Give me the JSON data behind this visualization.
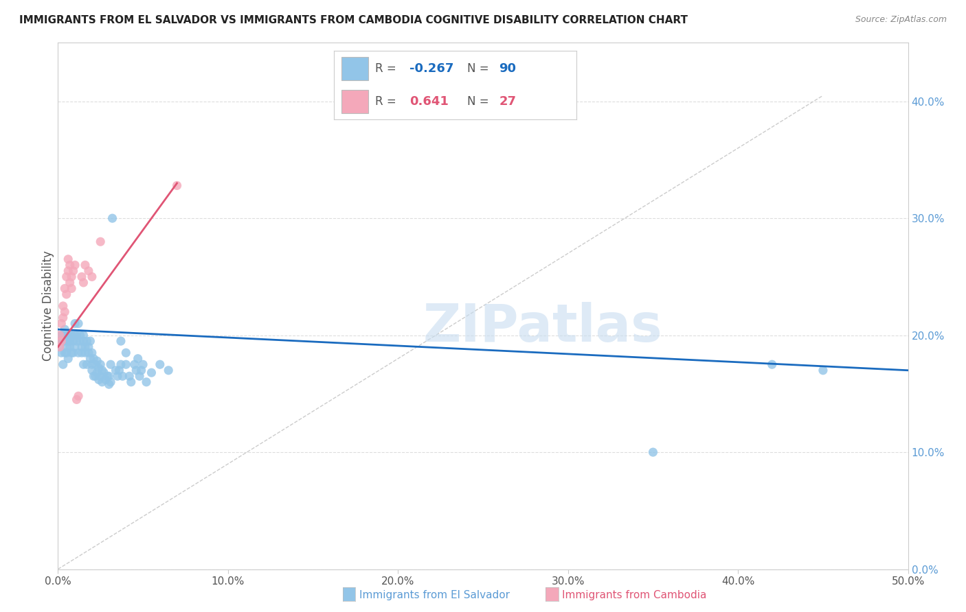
{
  "title": "IMMIGRANTS FROM EL SALVADOR VS IMMIGRANTS FROM CAMBODIA COGNITIVE DISABILITY CORRELATION CHART",
  "source": "Source: ZipAtlas.com",
  "ylabel": "Cognitive Disability",
  "R_salvador": -0.267,
  "N_salvador": 90,
  "R_cambodia": 0.641,
  "N_cambodia": 27,
  "color_salvador": "#92c5e8",
  "color_cambodia": "#f4a8ba",
  "color_trendline_salvador": "#1a6bbf",
  "color_trendline_cambodia": "#e05575",
  "color_refline": "#cccccc",
  "watermark": "ZIPatlas",
  "xmin": 0.0,
  "xmax": 0.5,
  "ymin": 0.0,
  "ymax": 0.45,
  "scatter_salvador": [
    [
      0.001,
      0.19
    ],
    [
      0.001,
      0.195
    ],
    [
      0.002,
      0.185
    ],
    [
      0.002,
      0.2
    ],
    [
      0.003,
      0.175
    ],
    [
      0.003,
      0.195
    ],
    [
      0.003,
      0.2
    ],
    [
      0.004,
      0.185
    ],
    [
      0.004,
      0.195
    ],
    [
      0.004,
      0.205
    ],
    [
      0.005,
      0.19
    ],
    [
      0.005,
      0.2
    ],
    [
      0.005,
      0.185
    ],
    [
      0.006,
      0.195
    ],
    [
      0.006,
      0.18
    ],
    [
      0.007,
      0.2
    ],
    [
      0.007,
      0.19
    ],
    [
      0.007,
      0.195
    ],
    [
      0.008,
      0.185
    ],
    [
      0.008,
      0.2
    ],
    [
      0.009,
      0.195
    ],
    [
      0.009,
      0.185
    ],
    [
      0.01,
      0.2
    ],
    [
      0.01,
      0.19
    ],
    [
      0.01,
      0.21
    ],
    [
      0.011,
      0.195
    ],
    [
      0.011,
      0.2
    ],
    [
      0.012,
      0.185
    ],
    [
      0.012,
      0.21
    ],
    [
      0.013,
      0.195
    ],
    [
      0.013,
      0.2
    ],
    [
      0.014,
      0.19
    ],
    [
      0.014,
      0.185
    ],
    [
      0.015,
      0.2
    ],
    [
      0.015,
      0.195
    ],
    [
      0.015,
      0.175
    ],
    [
      0.016,
      0.19
    ],
    [
      0.016,
      0.185
    ],
    [
      0.017,
      0.195
    ],
    [
      0.017,
      0.175
    ],
    [
      0.018,
      0.19
    ],
    [
      0.018,
      0.185
    ],
    [
      0.019,
      0.195
    ],
    [
      0.019,
      0.18
    ],
    [
      0.02,
      0.185
    ],
    [
      0.02,
      0.175
    ],
    [
      0.02,
      0.17
    ],
    [
      0.021,
      0.18
    ],
    [
      0.021,
      0.165
    ],
    [
      0.022,
      0.175
    ],
    [
      0.022,
      0.165
    ],
    [
      0.023,
      0.178
    ],
    [
      0.023,
      0.168
    ],
    [
      0.024,
      0.172
    ],
    [
      0.024,
      0.162
    ],
    [
      0.025,
      0.175
    ],
    [
      0.025,
      0.165
    ],
    [
      0.026,
      0.17
    ],
    [
      0.026,
      0.16
    ],
    [
      0.027,
      0.168
    ],
    [
      0.028,
      0.162
    ],
    [
      0.029,
      0.165
    ],
    [
      0.03,
      0.158
    ],
    [
      0.03,
      0.165
    ],
    [
      0.031,
      0.16
    ],
    [
      0.031,
      0.175
    ],
    [
      0.032,
      0.3
    ],
    [
      0.034,
      0.17
    ],
    [
      0.035,
      0.165
    ],
    [
      0.036,
      0.17
    ],
    [
      0.037,
      0.175
    ],
    [
      0.037,
      0.195
    ],
    [
      0.038,
      0.165
    ],
    [
      0.04,
      0.175
    ],
    [
      0.04,
      0.185
    ],
    [
      0.042,
      0.165
    ],
    [
      0.043,
      0.16
    ],
    [
      0.045,
      0.175
    ],
    [
      0.046,
      0.17
    ],
    [
      0.047,
      0.18
    ],
    [
      0.048,
      0.165
    ],
    [
      0.049,
      0.17
    ],
    [
      0.05,
      0.175
    ],
    [
      0.052,
      0.16
    ],
    [
      0.055,
      0.168
    ],
    [
      0.06,
      0.175
    ],
    [
      0.065,
      0.17
    ],
    [
      0.35,
      0.1
    ],
    [
      0.42,
      0.175
    ],
    [
      0.45,
      0.17
    ]
  ],
  "scatter_cambodia": [
    [
      0.001,
      0.19
    ],
    [
      0.001,
      0.2
    ],
    [
      0.002,
      0.195
    ],
    [
      0.002,
      0.21
    ],
    [
      0.003,
      0.215
    ],
    [
      0.003,
      0.225
    ],
    [
      0.004,
      0.24
    ],
    [
      0.004,
      0.22
    ],
    [
      0.005,
      0.235
    ],
    [
      0.005,
      0.25
    ],
    [
      0.006,
      0.255
    ],
    [
      0.006,
      0.265
    ],
    [
      0.007,
      0.245
    ],
    [
      0.007,
      0.26
    ],
    [
      0.008,
      0.25
    ],
    [
      0.008,
      0.24
    ],
    [
      0.009,
      0.255
    ],
    [
      0.01,
      0.26
    ],
    [
      0.011,
      0.145
    ],
    [
      0.012,
      0.148
    ],
    [
      0.014,
      0.25
    ],
    [
      0.015,
      0.245
    ],
    [
      0.016,
      0.26
    ],
    [
      0.018,
      0.255
    ],
    [
      0.02,
      0.25
    ],
    [
      0.025,
      0.28
    ],
    [
      0.07,
      0.328
    ]
  ],
  "trendline_salvador": [
    [
      0.0,
      0.205
    ],
    [
      0.5,
      0.17
    ]
  ],
  "trendline_cambodia": [
    [
      0.0,
      0.19
    ],
    [
      0.07,
      0.33
    ]
  ],
  "refline": [
    [
      0.0,
      0.0
    ],
    [
      0.45,
      0.405
    ]
  ],
  "grid_yticks": [
    0.0,
    0.1,
    0.2,
    0.3,
    0.4
  ],
  "xticks": [
    0.0,
    0.1,
    0.2,
    0.3,
    0.4,
    0.5
  ],
  "background_color": "#ffffff"
}
